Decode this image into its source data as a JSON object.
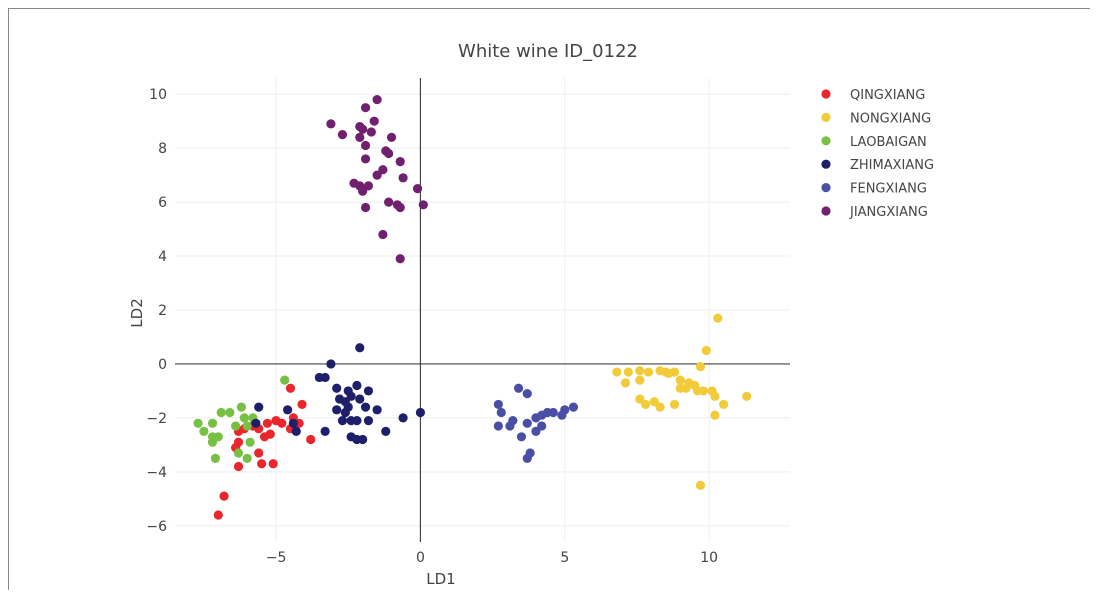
{
  "chart_data": {
    "type": "scatter",
    "title": "White wine ID_0122",
    "xlabel": "LD1",
    "ylabel": "LD2",
    "xlim": [
      -8.5,
      12.8
    ],
    "ylim": [
      -6.6,
      10.6
    ],
    "xticks": [
      -5,
      0,
      5,
      10
    ],
    "yticks": [
      -6,
      -4,
      -2,
      0,
      2,
      4,
      6,
      8,
      10
    ],
    "xtick_labels": [
      "−5",
      "0",
      "5",
      "10"
    ],
    "ytick_labels": [
      "−6",
      "−4",
      "−2",
      "0",
      "2",
      "4",
      "6",
      "8",
      "10"
    ],
    "grid": true,
    "legend_position": "top-right",
    "series": [
      {
        "name": "QINGXIANG",
        "color": "#e8262b",
        "points": [
          [
            -4.5,
            -0.9
          ],
          [
            -4.1,
            -1.5
          ],
          [
            -4.4,
            -2.0
          ],
          [
            -4.8,
            -2.2
          ],
          [
            -4.2,
            -2.2
          ],
          [
            -4.5,
            -2.4
          ],
          [
            -3.8,
            -2.8
          ],
          [
            -5.0,
            -2.1
          ],
          [
            -5.3,
            -2.2
          ],
          [
            -5.2,
            -2.6
          ],
          [
            -5.4,
            -2.7
          ],
          [
            -5.6,
            -2.4
          ],
          [
            -5.8,
            -2.3
          ],
          [
            -6.1,
            -2.4
          ],
          [
            -6.3,
            -2.5
          ],
          [
            -6.3,
            -2.9
          ],
          [
            -6.4,
            -3.1
          ],
          [
            -5.6,
            -3.3
          ],
          [
            -5.5,
            -3.7
          ],
          [
            -6.3,
            -3.8
          ],
          [
            -5.1,
            -3.7
          ],
          [
            -6.8,
            -4.9
          ],
          [
            -7.0,
            -5.6
          ]
        ]
      },
      {
        "name": "NONGXIANG",
        "color": "#f2cb3a",
        "points": [
          [
            6.8,
            -0.3
          ],
          [
            7.2,
            -0.3
          ],
          [
            7.6,
            -0.25
          ],
          [
            7.9,
            -0.3
          ],
          [
            8.3,
            -0.25
          ],
          [
            8.6,
            -0.35
          ],
          [
            8.8,
            -0.3
          ],
          [
            7.1,
            -0.7
          ],
          [
            7.6,
            -0.6
          ],
          [
            9.0,
            -0.6
          ],
          [
            9.3,
            -0.7
          ],
          [
            9.5,
            -0.8
          ],
          [
            9.7,
            -0.1
          ],
          [
            9.9,
            0.5
          ],
          [
            10.1,
            -1.0
          ],
          [
            10.3,
            1.7
          ],
          [
            10.5,
            -1.5
          ],
          [
            10.2,
            -1.2
          ],
          [
            10.2,
            -1.9
          ],
          [
            11.3,
            -1.2
          ],
          [
            7.6,
            -1.3
          ],
          [
            7.8,
            -1.5
          ],
          [
            8.1,
            -1.4
          ],
          [
            8.3,
            -1.6
          ],
          [
            8.8,
            -1.5
          ],
          [
            9.0,
            -0.9
          ],
          [
            9.2,
            -0.9
          ],
          [
            9.6,
            -1.0
          ],
          [
            9.8,
            -1.0
          ],
          [
            8.5,
            -0.3
          ],
          [
            9.7,
            -4.5
          ]
        ]
      },
      {
        "name": "LAOBAIGAN",
        "color": "#77c043",
        "points": [
          [
            -4.7,
            -0.6
          ],
          [
            -6.2,
            -1.6
          ],
          [
            -6.6,
            -1.8
          ],
          [
            -6.1,
            -2.0
          ],
          [
            -5.8,
            -2.0
          ],
          [
            -6.0,
            -2.3
          ],
          [
            -6.9,
            -1.8
          ],
          [
            -7.2,
            -2.2
          ],
          [
            -7.7,
            -2.2
          ],
          [
            -7.5,
            -2.5
          ],
          [
            -7.2,
            -2.7
          ],
          [
            -7.0,
            -2.7
          ],
          [
            -7.2,
            -2.9
          ],
          [
            -5.9,
            -2.9
          ],
          [
            -6.3,
            -3.3
          ],
          [
            -6.0,
            -3.5
          ],
          [
            -7.1,
            -3.5
          ],
          [
            -6.4,
            -2.3
          ]
        ]
      },
      {
        "name": "ZHIMAXIANG",
        "color": "#1e1f6b",
        "points": [
          [
            -2.1,
            0.6
          ],
          [
            -3.1,
            0.0
          ],
          [
            -3.3,
            -0.5
          ],
          [
            -3.5,
            -0.5
          ],
          [
            -2.9,
            -0.9
          ],
          [
            -2.5,
            -1.0
          ],
          [
            -2.2,
            -0.8
          ],
          [
            -1.8,
            -1.0
          ],
          [
            -2.4,
            -1.2
          ],
          [
            -2.6,
            -1.4
          ],
          [
            -2.8,
            -1.3
          ],
          [
            -2.1,
            -1.3
          ],
          [
            -2.5,
            -1.6
          ],
          [
            -2.9,
            -1.7
          ],
          [
            -1.9,
            -1.6
          ],
          [
            -1.5,
            -1.7
          ],
          [
            -2.6,
            -1.8
          ],
          [
            -2.4,
            -2.1
          ],
          [
            -2.2,
            -2.1
          ],
          [
            -1.8,
            -2.1
          ],
          [
            -2.7,
            -2.1
          ],
          [
            -4.6,
            -1.7
          ],
          [
            -4.4,
            -2.2
          ],
          [
            -4.3,
            -2.5
          ],
          [
            -3.3,
            -2.5
          ],
          [
            -2.4,
            -2.7
          ],
          [
            -2.0,
            -2.8
          ],
          [
            -1.2,
            -2.5
          ],
          [
            -0.6,
            -2.0
          ],
          [
            0.0,
            -1.8
          ],
          [
            -5.6,
            -1.6
          ],
          [
            -5.7,
            -2.2
          ],
          [
            -2.2,
            -2.8
          ]
        ]
      },
      {
        "name": "FENGXIANG",
        "color": "#4a4fa6",
        "points": [
          [
            3.4,
            -0.9
          ],
          [
            3.7,
            -1.1
          ],
          [
            2.7,
            -1.5
          ],
          [
            2.8,
            -1.8
          ],
          [
            2.7,
            -2.3
          ],
          [
            3.1,
            -2.3
          ],
          [
            3.2,
            -2.1
          ],
          [
            3.7,
            -2.2
          ],
          [
            4.0,
            -2.0
          ],
          [
            4.2,
            -1.9
          ],
          [
            4.4,
            -1.8
          ],
          [
            4.6,
            -1.8
          ],
          [
            4.9,
            -1.9
          ],
          [
            5.0,
            -1.7
          ],
          [
            5.3,
            -1.6
          ],
          [
            4.2,
            -2.3
          ],
          [
            4.0,
            -2.5
          ],
          [
            3.5,
            -2.7
          ],
          [
            3.8,
            -3.3
          ],
          [
            3.7,
            -3.5
          ]
        ]
      },
      {
        "name": "JIANGXIANG",
        "color": "#711f6f",
        "points": [
          [
            -1.5,
            9.8
          ],
          [
            -1.9,
            9.5
          ],
          [
            -1.6,
            9.0
          ],
          [
            -3.1,
            8.9
          ],
          [
            -2.1,
            8.8
          ],
          [
            -2.0,
            8.7
          ],
          [
            -1.7,
            8.6
          ],
          [
            -2.7,
            8.5
          ],
          [
            -2.1,
            8.4
          ],
          [
            -1.0,
            8.4
          ],
          [
            -1.9,
            8.1
          ],
          [
            -1.2,
            7.9
          ],
          [
            -1.1,
            7.8
          ],
          [
            -1.9,
            7.6
          ],
          [
            -0.7,
            7.5
          ],
          [
            -1.3,
            7.2
          ],
          [
            -1.5,
            7.0
          ],
          [
            -0.6,
            6.9
          ],
          [
            -2.3,
            6.7
          ],
          [
            -2.1,
            6.6
          ],
          [
            -1.8,
            6.6
          ],
          [
            -2.0,
            6.4
          ],
          [
            -0.1,
            6.5
          ],
          [
            -1.1,
            6.0
          ],
          [
            -0.8,
            5.9
          ],
          [
            -0.7,
            5.8
          ],
          [
            -1.9,
            5.8
          ],
          [
            0.1,
            5.9
          ],
          [
            -1.3,
            4.8
          ],
          [
            -0.7,
            3.9
          ]
        ]
      }
    ]
  }
}
